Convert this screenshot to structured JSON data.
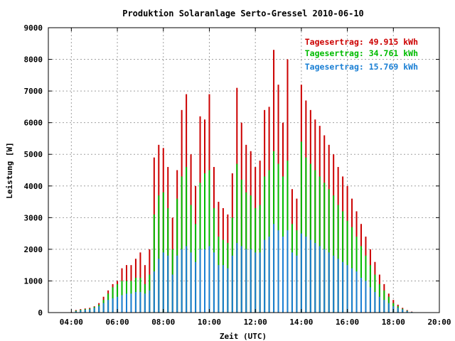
{
  "chart_data": {
    "type": "bar",
    "title": "Produktion Solaranlage Serto-Gressel 2010-06-10",
    "xlabel": "Zeit (UTC)",
    "ylabel": "Leistung [W]",
    "xlim": [
      3.0,
      20.0
    ],
    "ylim": [
      0,
      9000
    ],
    "grid": true,
    "legend_placement": "top-right",
    "x_ticks": [
      {
        "value": 4,
        "label": "04:00"
      },
      {
        "value": 6,
        "label": "06:00"
      },
      {
        "value": 8,
        "label": "08:00"
      },
      {
        "value": 10,
        "label": "10:00"
      },
      {
        "value": 12,
        "label": "12:00"
      },
      {
        "value": 14,
        "label": "14:00"
      },
      {
        "value": 16,
        "label": "16:00"
      },
      {
        "value": 18,
        "label": "18:00"
      },
      {
        "value": 20,
        "label": "20:00"
      }
    ],
    "y_ticks": [
      {
        "value": 0,
        "label": "0"
      },
      {
        "value": 1000,
        "label": "1000"
      },
      {
        "value": 2000,
        "label": "2000"
      },
      {
        "value": 3000,
        "label": "3000"
      },
      {
        "value": 4000,
        "label": "4000"
      },
      {
        "value": 5000,
        "label": "5000"
      },
      {
        "value": 6000,
        "label": "6000"
      },
      {
        "value": 7000,
        "label": "7000"
      },
      {
        "value": 8000,
        "label": "8000"
      },
      {
        "value": 9000,
        "label": "9000"
      }
    ],
    "legend": [
      {
        "text": "Tagesertrag: 49.915 kWh",
        "color": "#cc0000"
      },
      {
        "text": "Tagesertrag: 34.761 kWh",
        "color": "#00bb00"
      },
      {
        "text": "Tagesertrag: 15.769 kWh",
        "color": "#1a7fd4"
      }
    ],
    "series": [
      {
        "color": "#cc0000",
        "points": [
          [
            4.0,
            20
          ],
          [
            4.2,
            80
          ],
          [
            4.4,
            110
          ],
          [
            4.6,
            130
          ],
          [
            4.8,
            150
          ],
          [
            5.0,
            200
          ],
          [
            5.2,
            300
          ],
          [
            5.4,
            500
          ],
          [
            5.6,
            700
          ],
          [
            5.8,
            900
          ],
          [
            6.0,
            1000
          ],
          [
            6.2,
            1400
          ],
          [
            6.4,
            1500
          ],
          [
            6.6,
            1500
          ],
          [
            6.8,
            1700
          ],
          [
            7.0,
            1900
          ],
          [
            7.2,
            1500
          ],
          [
            7.4,
            2000
          ],
          [
            7.6,
            4900
          ],
          [
            7.8,
            5300
          ],
          [
            8.0,
            5200
          ],
          [
            8.2,
            4600
          ],
          [
            8.4,
            3000
          ],
          [
            8.6,
            4500
          ],
          [
            8.8,
            6400
          ],
          [
            9.0,
            6900
          ],
          [
            9.2,
            5000
          ],
          [
            9.4,
            4000
          ],
          [
            9.6,
            6200
          ],
          [
            9.8,
            6100
          ],
          [
            10.0,
            6900
          ],
          [
            10.2,
            4600
          ],
          [
            10.4,
            3500
          ],
          [
            10.6,
            3300
          ],
          [
            10.8,
            3100
          ],
          [
            11.0,
            4400
          ],
          [
            11.2,
            7100
          ],
          [
            11.4,
            6000
          ],
          [
            11.6,
            5300
          ],
          [
            11.8,
            5100
          ],
          [
            12.0,
            4600
          ],
          [
            12.2,
            4800
          ],
          [
            12.4,
            6400
          ],
          [
            12.6,
            6500
          ],
          [
            12.8,
            8300
          ],
          [
            13.0,
            7200
          ],
          [
            13.2,
            6000
          ],
          [
            13.4,
            8000
          ],
          [
            13.6,
            3900
          ],
          [
            13.8,
            3600
          ],
          [
            14.0,
            7200
          ],
          [
            14.2,
            6700
          ],
          [
            14.4,
            6400
          ],
          [
            14.6,
            6100
          ],
          [
            14.8,
            5900
          ],
          [
            15.0,
            5600
          ],
          [
            15.2,
            5300
          ],
          [
            15.4,
            5000
          ],
          [
            15.6,
            4600
          ],
          [
            15.8,
            4300
          ],
          [
            16.0,
            4000
          ],
          [
            16.2,
            3600
          ],
          [
            16.4,
            3200
          ],
          [
            16.6,
            2800
          ],
          [
            16.8,
            2400
          ],
          [
            17.0,
            2000
          ],
          [
            17.2,
            1600
          ],
          [
            17.4,
            1200
          ],
          [
            17.6,
            900
          ],
          [
            17.8,
            600
          ],
          [
            18.0,
            400
          ],
          [
            18.2,
            250
          ],
          [
            18.4,
            150
          ],
          [
            18.6,
            80
          ],
          [
            18.8,
            30
          ],
          [
            19.0,
            10
          ]
        ]
      },
      {
        "color": "#00bb00",
        "points": [
          [
            4.0,
            10
          ],
          [
            4.2,
            60
          ],
          [
            4.4,
            90
          ],
          [
            4.6,
            110
          ],
          [
            4.8,
            120
          ],
          [
            5.0,
            180
          ],
          [
            5.2,
            250
          ],
          [
            5.4,
            400
          ],
          [
            5.6,
            600
          ],
          [
            5.8,
            800
          ],
          [
            6.0,
            900
          ],
          [
            6.2,
            1000
          ],
          [
            6.4,
            1000
          ],
          [
            6.6,
            1000
          ],
          [
            6.8,
            1100
          ],
          [
            7.0,
            1100
          ],
          [
            7.2,
            900
          ],
          [
            7.4,
            1200
          ],
          [
            7.6,
            3100
          ],
          [
            7.8,
            3700
          ],
          [
            8.0,
            3800
          ],
          [
            8.2,
            3300
          ],
          [
            8.4,
            2000
          ],
          [
            8.6,
            3600
          ],
          [
            8.8,
            4300
          ],
          [
            9.0,
            4600
          ],
          [
            9.2,
            3400
          ],
          [
            9.4,
            2800
          ],
          [
            9.6,
            4100
          ],
          [
            9.8,
            4400
          ],
          [
            10.0,
            4500
          ],
          [
            10.2,
            3300
          ],
          [
            10.4,
            2400
          ],
          [
            10.6,
            2300
          ],
          [
            10.8,
            2200
          ],
          [
            11.0,
            3000
          ],
          [
            11.2,
            4700
          ],
          [
            11.4,
            4200
          ],
          [
            11.6,
            3800
          ],
          [
            11.8,
            3700
          ],
          [
            12.0,
            3300
          ],
          [
            12.2,
            3400
          ],
          [
            12.4,
            4300
          ],
          [
            12.6,
            4500
          ],
          [
            12.8,
            5100
          ],
          [
            13.0,
            4700
          ],
          [
            13.2,
            4300
          ],
          [
            13.4,
            4800
          ],
          [
            13.6,
            2800
          ],
          [
            13.8,
            2600
          ],
          [
            14.0,
            5400
          ],
          [
            14.2,
            4900
          ],
          [
            14.4,
            4700
          ],
          [
            14.6,
            4500
          ],
          [
            14.8,
            4300
          ],
          [
            15.0,
            4100
          ],
          [
            15.2,
            3900
          ],
          [
            15.4,
            3700
          ],
          [
            15.6,
            3400
          ],
          [
            15.8,
            3200
          ],
          [
            16.0,
            2900
          ],
          [
            16.2,
            2700
          ],
          [
            16.4,
            2400
          ],
          [
            16.6,
            2100
          ],
          [
            16.8,
            1800
          ],
          [
            17.0,
            1500
          ],
          [
            17.2,
            1200
          ],
          [
            17.4,
            900
          ],
          [
            17.6,
            700
          ],
          [
            17.8,
            500
          ],
          [
            18.0,
            300
          ],
          [
            18.2,
            200
          ],
          [
            18.4,
            120
          ],
          [
            18.6,
            60
          ],
          [
            18.8,
            20
          ],
          [
            19.0,
            5
          ]
        ]
      },
      {
        "color": "#1a7fd4",
        "points": [
          [
            4.0,
            5
          ],
          [
            4.2,
            40
          ],
          [
            4.4,
            70
          ],
          [
            4.6,
            90
          ],
          [
            4.8,
            100
          ],
          [
            5.0,
            150
          ],
          [
            5.2,
            200
          ],
          [
            5.4,
            300
          ],
          [
            5.6,
            400
          ],
          [
            5.8,
            450
          ],
          [
            6.0,
            500
          ],
          [
            6.2,
            550
          ],
          [
            6.4,
            600
          ],
          [
            6.6,
            600
          ],
          [
            6.8,
            650
          ],
          [
            7.0,
            650
          ],
          [
            7.2,
            600
          ],
          [
            7.4,
            700
          ],
          [
            7.6,
            1300
          ],
          [
            7.8,
            1700
          ],
          [
            8.0,
            1900
          ],
          [
            8.2,
            1800
          ],
          [
            8.4,
            1200
          ],
          [
            8.6,
            1800
          ],
          [
            8.8,
            2000
          ],
          [
            9.0,
            2100
          ],
          [
            9.2,
            1900
          ],
          [
            9.4,
            1600
          ],
          [
            9.6,
            2000
          ],
          [
            9.8,
            2000
          ],
          [
            10.0,
            2100
          ],
          [
            10.2,
            1900
          ],
          [
            10.4,
            1500
          ],
          [
            10.6,
            1500
          ],
          [
            10.8,
            1400
          ],
          [
            11.0,
            1800
          ],
          [
            11.2,
            2200
          ],
          [
            11.4,
            2100
          ],
          [
            11.6,
            2000
          ],
          [
            11.8,
            2000
          ],
          [
            12.0,
            1900
          ],
          [
            12.2,
            1900
          ],
          [
            12.4,
            2300
          ],
          [
            12.6,
            2400
          ],
          [
            12.8,
            2800
          ],
          [
            13.0,
            2600
          ],
          [
            13.2,
            2400
          ],
          [
            13.4,
            2600
          ],
          [
            13.6,
            1900
          ],
          [
            13.8,
            1800
          ],
          [
            14.0,
            2500
          ],
          [
            14.2,
            2400
          ],
          [
            14.4,
            2300
          ],
          [
            14.6,
            2200
          ],
          [
            14.8,
            2100
          ],
          [
            15.0,
            2000
          ],
          [
            15.2,
            1900
          ],
          [
            15.4,
            1800
          ],
          [
            15.6,
            1700
          ],
          [
            15.8,
            1600
          ],
          [
            16.0,
            1500
          ],
          [
            16.2,
            1400
          ],
          [
            16.4,
            1300
          ],
          [
            16.6,
            1100
          ],
          [
            16.8,
            1000
          ],
          [
            17.0,
            800
          ],
          [
            17.2,
            650
          ],
          [
            17.4,
            500
          ],
          [
            17.6,
            400
          ],
          [
            17.8,
            300
          ],
          [
            18.0,
            200
          ],
          [
            18.2,
            150
          ],
          [
            18.4,
            100
          ],
          [
            18.6,
            50
          ],
          [
            18.8,
            20
          ],
          [
            19.0,
            5
          ]
        ]
      }
    ]
  }
}
